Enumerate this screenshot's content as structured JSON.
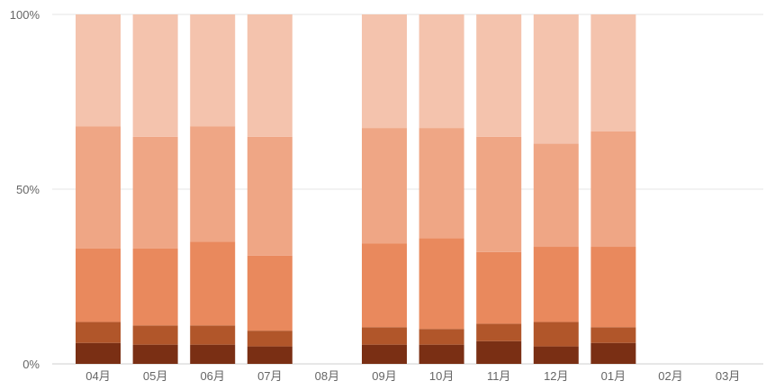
{
  "chart_data": {
    "type": "bar",
    "stacked": true,
    "normalized": true,
    "categories": [
      "04月",
      "05月",
      "06月",
      "07月",
      "08月",
      "09月",
      "10月",
      "11月",
      "12月",
      "01月",
      "02月",
      "03月"
    ],
    "y_ticks": [
      "0%",
      "50%",
      "100%"
    ],
    "ylim": [
      0,
      100
    ],
    "grid": true,
    "legend": "none",
    "series": [
      {
        "color": "#7a2f14",
        "values": [
          6,
          5.5,
          5.5,
          5,
          null,
          5.5,
          5.5,
          6.5,
          5,
          6,
          null,
          null
        ]
      },
      {
        "color": "#b1562a",
        "values": [
          6,
          5.5,
          5.5,
          4.5,
          null,
          5,
          4.5,
          5,
          7,
          4.5,
          null,
          null
        ]
      },
      {
        "color": "#e9895d",
        "values": [
          21,
          22,
          24,
          21.5,
          null,
          24,
          26,
          20.5,
          21.5,
          23,
          null,
          null
        ]
      },
      {
        "color": "#efa685",
        "values": [
          35,
          32,
          33,
          34,
          null,
          33,
          31.5,
          33,
          29.5,
          33,
          null,
          null
        ]
      },
      {
        "color": "#f4c3ad",
        "values": [
          32,
          35,
          32,
          35,
          null,
          32.5,
          32.5,
          35,
          37,
          33.5,
          null,
          null
        ]
      }
    ]
  }
}
